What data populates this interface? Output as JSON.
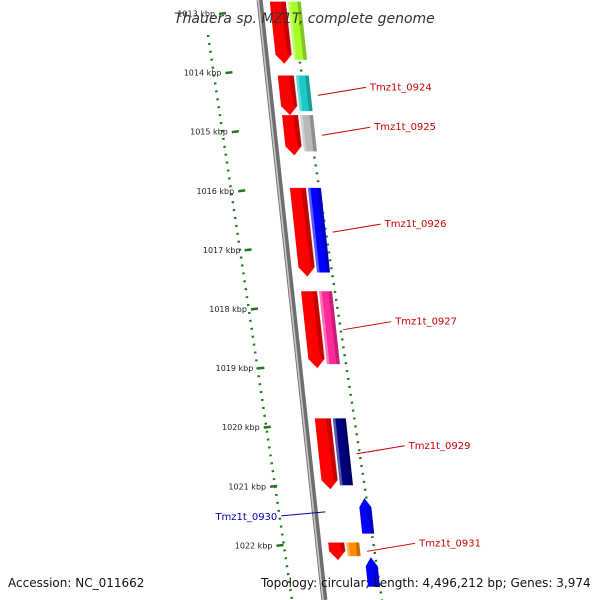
{
  "title": "Thauera sp. MZ1T, complete genome",
  "footer": {
    "accession": "Accession: NC_011662",
    "summary": "Topology: circular; Length: 4,496,212 bp; Genes: 3,974"
  },
  "colors": {
    "background": "#ffffff",
    "backbone": "#8a8a8a",
    "tick": "#1f7a1f",
    "forward_label": "#cc0000",
    "reverse_label": "#0000aa"
  },
  "ticks": [
    {
      "label": "1013 kbp"
    },
    {
      "label": "1014 kbp"
    },
    {
      "label": "1015 kbp"
    },
    {
      "label": "1016 kbp"
    },
    {
      "label": "1017 kbp"
    },
    {
      "label": "1018 kbp"
    },
    {
      "label": "1019 kbp"
    },
    {
      "label": "1020 kbp"
    },
    {
      "label": "1021 kbp"
    },
    {
      "label": "1022 kbp"
    }
  ],
  "genes": [
    {
      "label": "",
      "strand": "+",
      "start": 1012.8,
      "end": 1013.85,
      "color": "#ff0000",
      "track_color": "#a6ff2a"
    },
    {
      "label": "Tmz1t_0924",
      "strand": "+",
      "start": 1014.05,
      "end": 1014.72,
      "color": "#ff0000",
      "track_color": "#20c8c8"
    },
    {
      "label": "Tmz1t_0925",
      "strand": "+",
      "start": 1014.72,
      "end": 1015.4,
      "color": "#ff0000",
      "track_color": "#b8b8b8"
    },
    {
      "label": "Tmz1t_0926",
      "strand": "+",
      "start": 1015.95,
      "end": 1017.45,
      "color": "#ff0000",
      "track_color": "#0000ff"
    },
    {
      "label": "Tmz1t_0927",
      "strand": "+",
      "start": 1017.7,
      "end": 1019.0,
      "color": "#ff0000",
      "track_color": "#ff2a9a"
    },
    {
      "label": "Tmz1t_0929",
      "strand": "+",
      "start": 1019.85,
      "end": 1021.05,
      "color": "#ff0000",
      "track_color": "#000080"
    },
    {
      "label": "Tmz1t_0930",
      "strand": "-",
      "start": 1021.2,
      "end": 1021.8,
      "color": "#0000ff",
      "track_color": ""
    },
    {
      "label": "Tmz1t_0931",
      "strand": "+",
      "start": 1021.95,
      "end": 1022.25,
      "color": "#ff0000",
      "track_color": "#ff8c00"
    },
    {
      "label": "",
      "strand": "-",
      "start": 1022.2,
      "end": 1022.7,
      "color": "#0000ff",
      "track_color": ""
    }
  ]
}
